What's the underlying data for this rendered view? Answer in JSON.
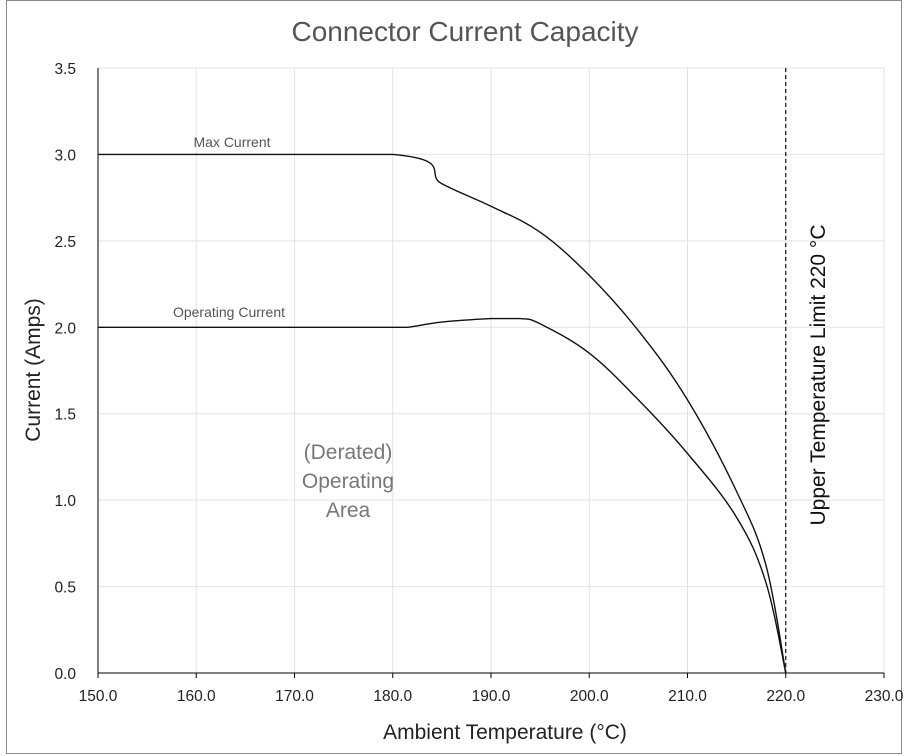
{
  "chart_data": {
    "type": "line",
    "title": "Connector Current Capacity",
    "xlabel": "Ambient Temperature (°C)",
    "ylabel": "Current (Amps)",
    "xlim": [
      150,
      230
    ],
    "ylim": [
      0,
      3.5
    ],
    "x_ticks": [
      "150.0",
      "160.0",
      "170.0",
      "180.0",
      "190.0",
      "200.0",
      "210.0",
      "220.0",
      "230.0"
    ],
    "y_ticks": [
      "0.0",
      "0.5",
      "1.0",
      "1.5",
      "2.0",
      "2.5",
      "3.0",
      "3.5"
    ],
    "grid": true,
    "series": [
      {
        "name": "Max Current",
        "x": [
          150,
          180,
          185,
          190,
          195,
          200,
          205,
          210,
          215,
          218,
          220
        ],
        "y": [
          3.0,
          3.0,
          2.83,
          2.7,
          2.55,
          2.3,
          1.98,
          1.58,
          1.05,
          0.62,
          0.0
        ]
      },
      {
        "name": "Operating Current",
        "x": [
          150,
          180,
          181.5,
          185,
          190,
          193,
          195,
          200,
          205,
          210,
          215,
          218,
          220
        ],
        "y": [
          2.0,
          2.0,
          2.0,
          2.03,
          2.05,
          2.05,
          2.02,
          1.85,
          1.58,
          1.27,
          0.9,
          0.52,
          0.0
        ]
      }
    ],
    "annotations": {
      "limit_x": 220,
      "limit_label": "Upper Temperature Limit 220 °C",
      "area_label_lines": [
        "(Derated)",
        "Operating",
        "Area"
      ]
    }
  }
}
